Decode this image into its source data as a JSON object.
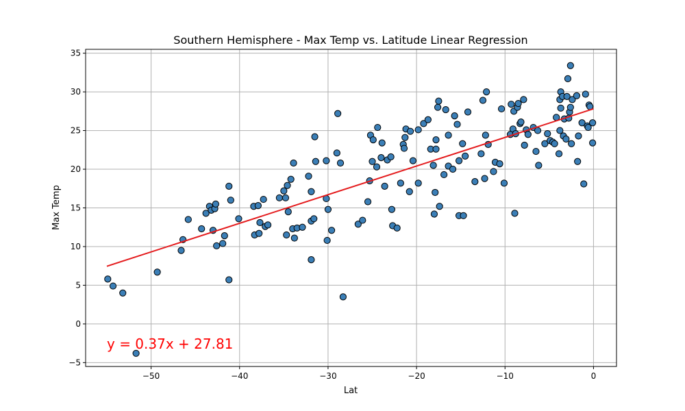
{
  "chart_data": {
    "type": "scatter",
    "title": "Southern Hemisphere - Max Temp vs. Latitude Linear Regression",
    "xlabel": "Lat",
    "ylabel": "Max Temp",
    "xlim": [
      -57.4,
      2.6
    ],
    "ylim": [
      -5.5,
      35.5
    ],
    "xticks": [
      -50,
      -40,
      -30,
      -20,
      -10,
      0
    ],
    "yticks": [
      -5,
      0,
      5,
      10,
      15,
      20,
      25,
      30,
      35
    ],
    "xtick_labels": [
      "−50",
      "−40",
      "−30",
      "−20",
      "−10",
      "0"
    ],
    "ytick_labels": [
      "−5",
      "0",
      "5",
      "10",
      "15",
      "20",
      "25",
      "30",
      "35"
    ],
    "grid": true,
    "colors": {
      "point_fill": "#3b7fb7",
      "point_edge": "#000000",
      "line": "#e41a1c",
      "annotation": "#ff0000"
    },
    "regression": {
      "slope": 0.37,
      "intercept": 27.81,
      "x_range": [
        -55,
        0
      ]
    },
    "annotation": {
      "text": "y = 0.37x + 27.81",
      "x": -55,
      "y": -3.2
    },
    "points": [
      [
        -54.9,
        5.8
      ],
      [
        -54.3,
        4.9
      ],
      [
        -53.2,
        4.0
      ],
      [
        -51.7,
        -3.8
      ],
      [
        -49.3,
        6.7
      ],
      [
        -46.6,
        9.5
      ],
      [
        -46.4,
        10.9
      ],
      [
        -45.8,
        13.5
      ],
      [
        -44.3,
        12.3
      ],
      [
        -43.8,
        14.3
      ],
      [
        -43.4,
        15.2
      ],
      [
        -43.2,
        14.7
      ],
      [
        -43.0,
        12.1
      ],
      [
        -42.8,
        14.9
      ],
      [
        -42.7,
        15.5
      ],
      [
        -42.6,
        10.1
      ],
      [
        -41.9,
        10.4
      ],
      [
        -41.7,
        11.4
      ],
      [
        -41.2,
        17.8
      ],
      [
        -41.0,
        16.0
      ],
      [
        -41.2,
        5.7
      ],
      [
        -40.1,
        13.6
      ],
      [
        -38.4,
        15.2
      ],
      [
        -38.3,
        11.5
      ],
      [
        -37.8,
        11.7
      ],
      [
        -37.9,
        15.3
      ],
      [
        -37.7,
        13.1
      ],
      [
        -37.3,
        16.1
      ],
      [
        -37.1,
        12.6
      ],
      [
        -36.8,
        12.8
      ],
      [
        -35.5,
        16.3
      ],
      [
        -35.0,
        17.2
      ],
      [
        -34.8,
        16.3
      ],
      [
        -34.6,
        17.9
      ],
      [
        -34.7,
        11.5
      ],
      [
        -34.5,
        14.5
      ],
      [
        -34.2,
        18.7
      ],
      [
        -34.0,
        12.3
      ],
      [
        -33.9,
        20.8
      ],
      [
        -33.8,
        11.1
      ],
      [
        -33.5,
        12.4
      ],
      [
        -32.9,
        12.5
      ],
      [
        -32.2,
        19.1
      ],
      [
        -31.9,
        17.1
      ],
      [
        -31.9,
        13.3
      ],
      [
        -31.9,
        8.3
      ],
      [
        -31.6,
        13.6
      ],
      [
        -31.5,
        24.2
      ],
      [
        -31.4,
        21.0
      ],
      [
        -30.2,
        21.1
      ],
      [
        -30.2,
        16.2
      ],
      [
        -30.0,
        14.8
      ],
      [
        -30.1,
        10.8
      ],
      [
        -29.6,
        12.1
      ],
      [
        -29.0,
        22.1
      ],
      [
        -28.9,
        27.2
      ],
      [
        -28.6,
        20.8
      ],
      [
        -28.3,
        3.5
      ],
      [
        -26.6,
        12.9
      ],
      [
        -26.1,
        13.4
      ],
      [
        -25.5,
        15.8
      ],
      [
        -25.3,
        18.5
      ],
      [
        -25.2,
        24.4
      ],
      [
        -25.0,
        21.0
      ],
      [
        -24.9,
        23.8
      ],
      [
        -24.5,
        20.3
      ],
      [
        -24.4,
        25.4
      ],
      [
        -24.0,
        21.5
      ],
      [
        -23.9,
        23.4
      ],
      [
        -23.6,
        17.8
      ],
      [
        -23.3,
        21.2
      ],
      [
        -22.9,
        21.6
      ],
      [
        -22.8,
        14.8
      ],
      [
        -22.7,
        12.7
      ],
      [
        -22.2,
        12.4
      ],
      [
        -21.8,
        18.2
      ],
      [
        -21.5,
        23.2
      ],
      [
        -21.4,
        22.7
      ],
      [
        -21.3,
        24.1
      ],
      [
        -21.2,
        25.2
      ],
      [
        -20.8,
        17.1
      ],
      [
        -20.7,
        24.9
      ],
      [
        -20.4,
        21.1
      ],
      [
        -19.8,
        18.2
      ],
      [
        -19.8,
        25.1
      ],
      [
        -19.2,
        25.9
      ],
      [
        -18.7,
        26.4
      ],
      [
        -18.4,
        22.6
      ],
      [
        -18.1,
        20.5
      ],
      [
        -18.0,
        14.2
      ],
      [
        -17.9,
        17.0
      ],
      [
        -17.8,
        22.6
      ],
      [
        -17.8,
        23.8
      ],
      [
        -17.6,
        28.0
      ],
      [
        -17.5,
        28.8
      ],
      [
        -17.4,
        15.2
      ],
      [
        -16.9,
        19.3
      ],
      [
        -16.7,
        27.7
      ],
      [
        -16.4,
        24.4
      ],
      [
        -16.4,
        20.4
      ],
      [
        -15.9,
        20.0
      ],
      [
        -15.7,
        26.9
      ],
      [
        -15.4,
        25.8
      ],
      [
        -15.2,
        14.0
      ],
      [
        -15.2,
        21.1
      ],
      [
        -14.8,
        23.3
      ],
      [
        -14.7,
        14.0
      ],
      [
        -14.5,
        21.7
      ],
      [
        -14.2,
        27.4
      ],
      [
        -13.4,
        18.4
      ],
      [
        -12.7,
        22.0
      ],
      [
        -12.5,
        28.9
      ],
      [
        -12.3,
        18.8
      ],
      [
        -12.2,
        24.4
      ],
      [
        -12.1,
        30.0
      ],
      [
        -11.9,
        23.2
      ],
      [
        -11.3,
        19.7
      ],
      [
        -11.1,
        20.9
      ],
      [
        -10.6,
        20.7
      ],
      [
        -10.4,
        27.8
      ],
      [
        -10.1,
        18.2
      ],
      [
        -9.4,
        24.5
      ],
      [
        -9.3,
        28.4
      ],
      [
        -9.1,
        25.2
      ],
      [
        -9.0,
        27.5
      ],
      [
        -8.9,
        14.3
      ],
      [
        -8.8,
        24.6
      ],
      [
        -8.6,
        28.0
      ],
      [
        -8.5,
        28.5
      ],
      [
        -8.3,
        25.9
      ],
      [
        -8.2,
        26.1
      ],
      [
        -7.9,
        29.0
      ],
      [
        -7.8,
        23.1
      ],
      [
        -7.6,
        25.1
      ],
      [
        -7.4,
        24.5
      ],
      [
        -6.8,
        25.4
      ],
      [
        -6.5,
        22.3
      ],
      [
        -6.3,
        25.0
      ],
      [
        -6.2,
        20.5
      ],
      [
        -5.5,
        23.3
      ],
      [
        -5.2,
        24.6
      ],
      [
        -4.9,
        23.7
      ],
      [
        -4.6,
        23.5
      ],
      [
        -4.4,
        23.3
      ],
      [
        -4.2,
        26.7
      ],
      [
        -3.9,
        22.0
      ],
      [
        -3.8,
        25.0
      ],
      [
        -3.7,
        27.9
      ],
      [
        -3.8,
        29.0
      ],
      [
        -3.7,
        30.0
      ],
      [
        -3.5,
        29.4
      ],
      [
        -3.4,
        24.3
      ],
      [
        -3.3,
        26.5
      ],
      [
        -3.1,
        23.9
      ],
      [
        -3.0,
        29.4
      ],
      [
        -2.9,
        31.7
      ],
      [
        -2.8,
        26.6
      ],
      [
        -2.7,
        27.4
      ],
      [
        -2.6,
        28.0
      ],
      [
        -2.6,
        33.4
      ],
      [
        -2.5,
        23.3
      ],
      [
        -2.4,
        29.0
      ],
      [
        -1.9,
        29.5
      ],
      [
        -1.8,
        21.0
      ],
      [
        -1.7,
        24.3
      ],
      [
        -1.3,
        26.0
      ],
      [
        -1.1,
        18.1
      ],
      [
        -0.9,
        29.7
      ],
      [
        -0.7,
        25.6
      ],
      [
        -0.6,
        25.4
      ],
      [
        -0.5,
        28.3
      ],
      [
        -0.4,
        28.1
      ],
      [
        -0.1,
        23.4
      ],
      [
        -0.1,
        26.0
      ]
    ]
  }
}
